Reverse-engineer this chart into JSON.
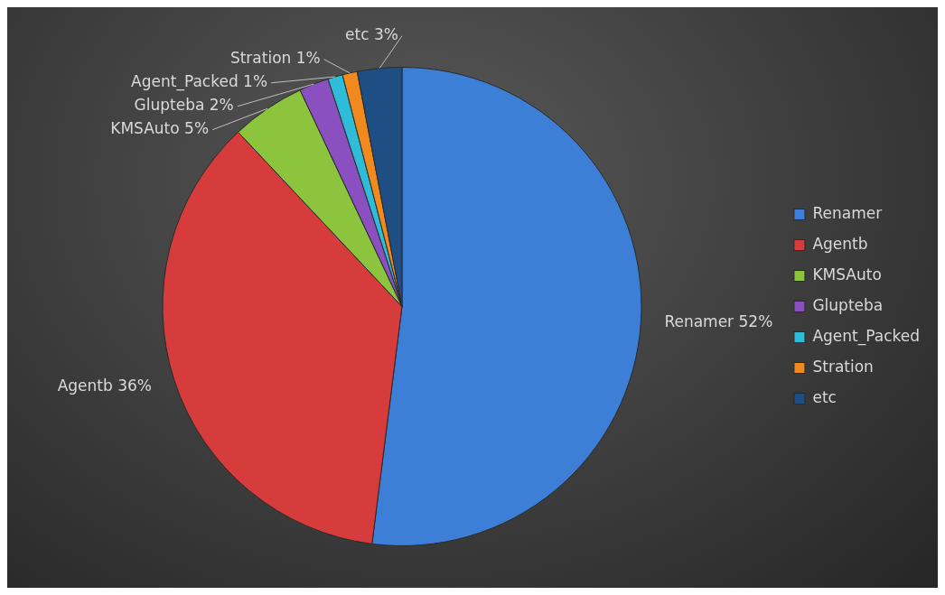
{
  "chart_data": {
    "type": "pie",
    "categories": [
      "Renamer",
      "Agentb",
      "KMSAuto",
      "Glupteba",
      "Agent_Packed",
      "Stration",
      "etc"
    ],
    "values": [
      52,
      36,
      5,
      2,
      1,
      1,
      3
    ],
    "value_labels": [
      "52%",
      "36%",
      "5%",
      "2%",
      "1%",
      "1%",
      "3%"
    ],
    "colors": [
      "#3d7fd6",
      "#d63c3c",
      "#8cc43e",
      "#8a50c0",
      "#2fbcd8",
      "#f08a1e",
      "#1f4e85"
    ],
    "legend": "right"
  }
}
